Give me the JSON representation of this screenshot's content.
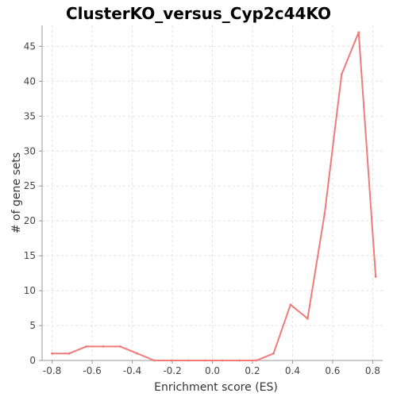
{
  "chart_data": {
    "type": "line",
    "title": "ClusterKO_versus_Cyp2c44KO",
    "xlabel": "Enrichment score (ES)",
    "ylabel": "# of gene sets",
    "xlim": [
      -0.85,
      0.85
    ],
    "ylim": [
      0,
      48
    ],
    "x_ticks": [
      -0.8,
      -0.6,
      -0.4,
      -0.2,
      0.0,
      0.2,
      0.4,
      0.6,
      0.8
    ],
    "x_tick_labels": [
      "-0.8",
      "-0.6",
      "-0.4",
      "-0.2",
      "0.0",
      "0.2",
      "0.4",
      "0.6",
      "0.8"
    ],
    "y_ticks": [
      0,
      5,
      10,
      15,
      20,
      25,
      30,
      35,
      40,
      45
    ],
    "y_tick_labels": [
      "0",
      "5",
      "10",
      "15",
      "20",
      "25",
      "30",
      "35",
      "40",
      "45"
    ],
    "grid": true,
    "series": [
      {
        "color": "#f07a7a",
        "x": [
          -0.8,
          -0.715,
          -0.63,
          -0.545,
          -0.46,
          -0.375,
          -0.29,
          -0.205,
          -0.12,
          -0.035,
          0.05,
          0.135,
          0.22,
          0.305,
          0.39,
          0.475,
          0.56,
          0.645,
          0.73,
          0.815
        ],
        "y": [
          1,
          1,
          2,
          2,
          2,
          1,
          0,
          0,
          0,
          0,
          0,
          0,
          0,
          1,
          8,
          6,
          21,
          41,
          47,
          12
        ]
      }
    ]
  }
}
